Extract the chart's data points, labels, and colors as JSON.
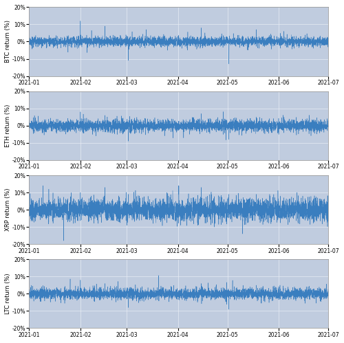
{
  "series": [
    "BTC",
    "ETH",
    "XRP",
    "LTC"
  ],
  "ylabels": [
    "BTC return (%)",
    "ETH return (%)",
    "XRP return (%)",
    "LTC return (%)"
  ],
  "ylim_pct": [
    -20,
    20
  ],
  "yticks_pct": [
    -20,
    -10,
    0,
    10,
    20
  ],
  "yticklabels": [
    "-20%",
    "-10%",
    "0%",
    "10%",
    "20%"
  ],
  "start_date": "2021-01-01",
  "end_date": "2021-07-01",
  "line_color": "#3a7ebf",
  "bg_color": "#c0ccdf",
  "fig_bg": "#ffffff",
  "line_width": 0.35,
  "figsize": [
    5.0,
    4.99
  ],
  "dpi": 100,
  "seeds": [
    101,
    202,
    303,
    404
  ],
  "base_vol_pct": [
    1.5,
    1.8,
    3.5,
    1.8
  ],
  "spike_indices_btc": [
    744,
    1100,
    1440,
    1700,
    2500,
    2900,
    3300,
    3700
  ],
  "spike_vals_btc": [
    12,
    9,
    -11,
    7,
    8,
    -13,
    7,
    6
  ],
  "spike_indices_eth": [
    744,
    1100,
    1440,
    2500,
    2900,
    3300
  ],
  "spike_vals_eth": [
    8,
    6,
    -9,
    7,
    -8,
    5
  ],
  "spike_indices_xrp": [
    200,
    500,
    744,
    900,
    1100,
    1300,
    1440,
    1600,
    1800,
    2000,
    2200,
    2500,
    2700,
    2900,
    3100,
    3300,
    3500,
    3700
  ],
  "spike_vals_xrp": [
    14,
    -18,
    10,
    8,
    13,
    -7,
    9,
    8,
    -8,
    10,
    -9,
    13,
    -8,
    9,
    -14,
    9,
    8,
    7
  ],
  "spike_indices_ltc": [
    744,
    1100,
    1440,
    2500,
    2900,
    3300
  ],
  "spike_vals_ltc": [
    8,
    6,
    -8,
    6,
    -9,
    5
  ],
  "grid_color": "#e8ecf4",
  "grid_lw": 0.5,
  "tick_fontsize": 5.5,
  "ylabel_fontsize": 6,
  "ylabel_rotation": 90
}
